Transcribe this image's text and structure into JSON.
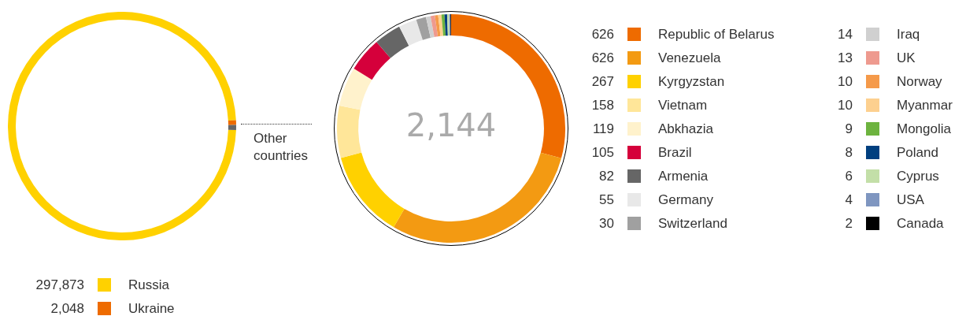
{
  "chart_data": [
    {
      "type": "donut",
      "categories": [
        "Russia",
        "Ukraine",
        "Other countries"
      ],
      "values": [
        297873,
        2048,
        2144
      ],
      "colors": [
        "#ffd100",
        "#ee6b00",
        "#666666"
      ],
      "value_labels": [
        "297,873",
        "2,048",
        null
      ],
      "legend": "bottom"
    },
    {
      "type": "donut",
      "categories": [
        "Republic of Belarus",
        "Venezuela",
        "Kyrgyzstan",
        "Vietnam",
        "Abkhazia",
        "Brazil",
        "Armenia",
        "Germany",
        "Switzerland",
        "Iraq",
        "UK",
        "Norway",
        "Myanmar",
        "Mongolia",
        "Poland",
        "Cyprus",
        "USA",
        "Canada"
      ],
      "values": [
        626,
        626,
        267,
        158,
        119,
        105,
        82,
        55,
        30,
        14,
        13,
        10,
        10,
        9,
        8,
        6,
        4,
        2
      ],
      "colors": [
        "#ee6b00",
        "#f39a12",
        "#ffd100",
        "#ffe699",
        "#fff2cc",
        "#d5003b",
        "#666666",
        "#e8e8e8",
        "#a0a0a0",
        "#d0d0d0",
        "#ee9a8f",
        "#f59a4a",
        "#fdd08f",
        "#6db33f",
        "#003f7f",
        "#c3dfa8",
        "#7f96c0",
        "#000000"
      ],
      "data_labels": true,
      "annotations": [
        "2,144"
      ],
      "legend": "right"
    }
  ]
}
